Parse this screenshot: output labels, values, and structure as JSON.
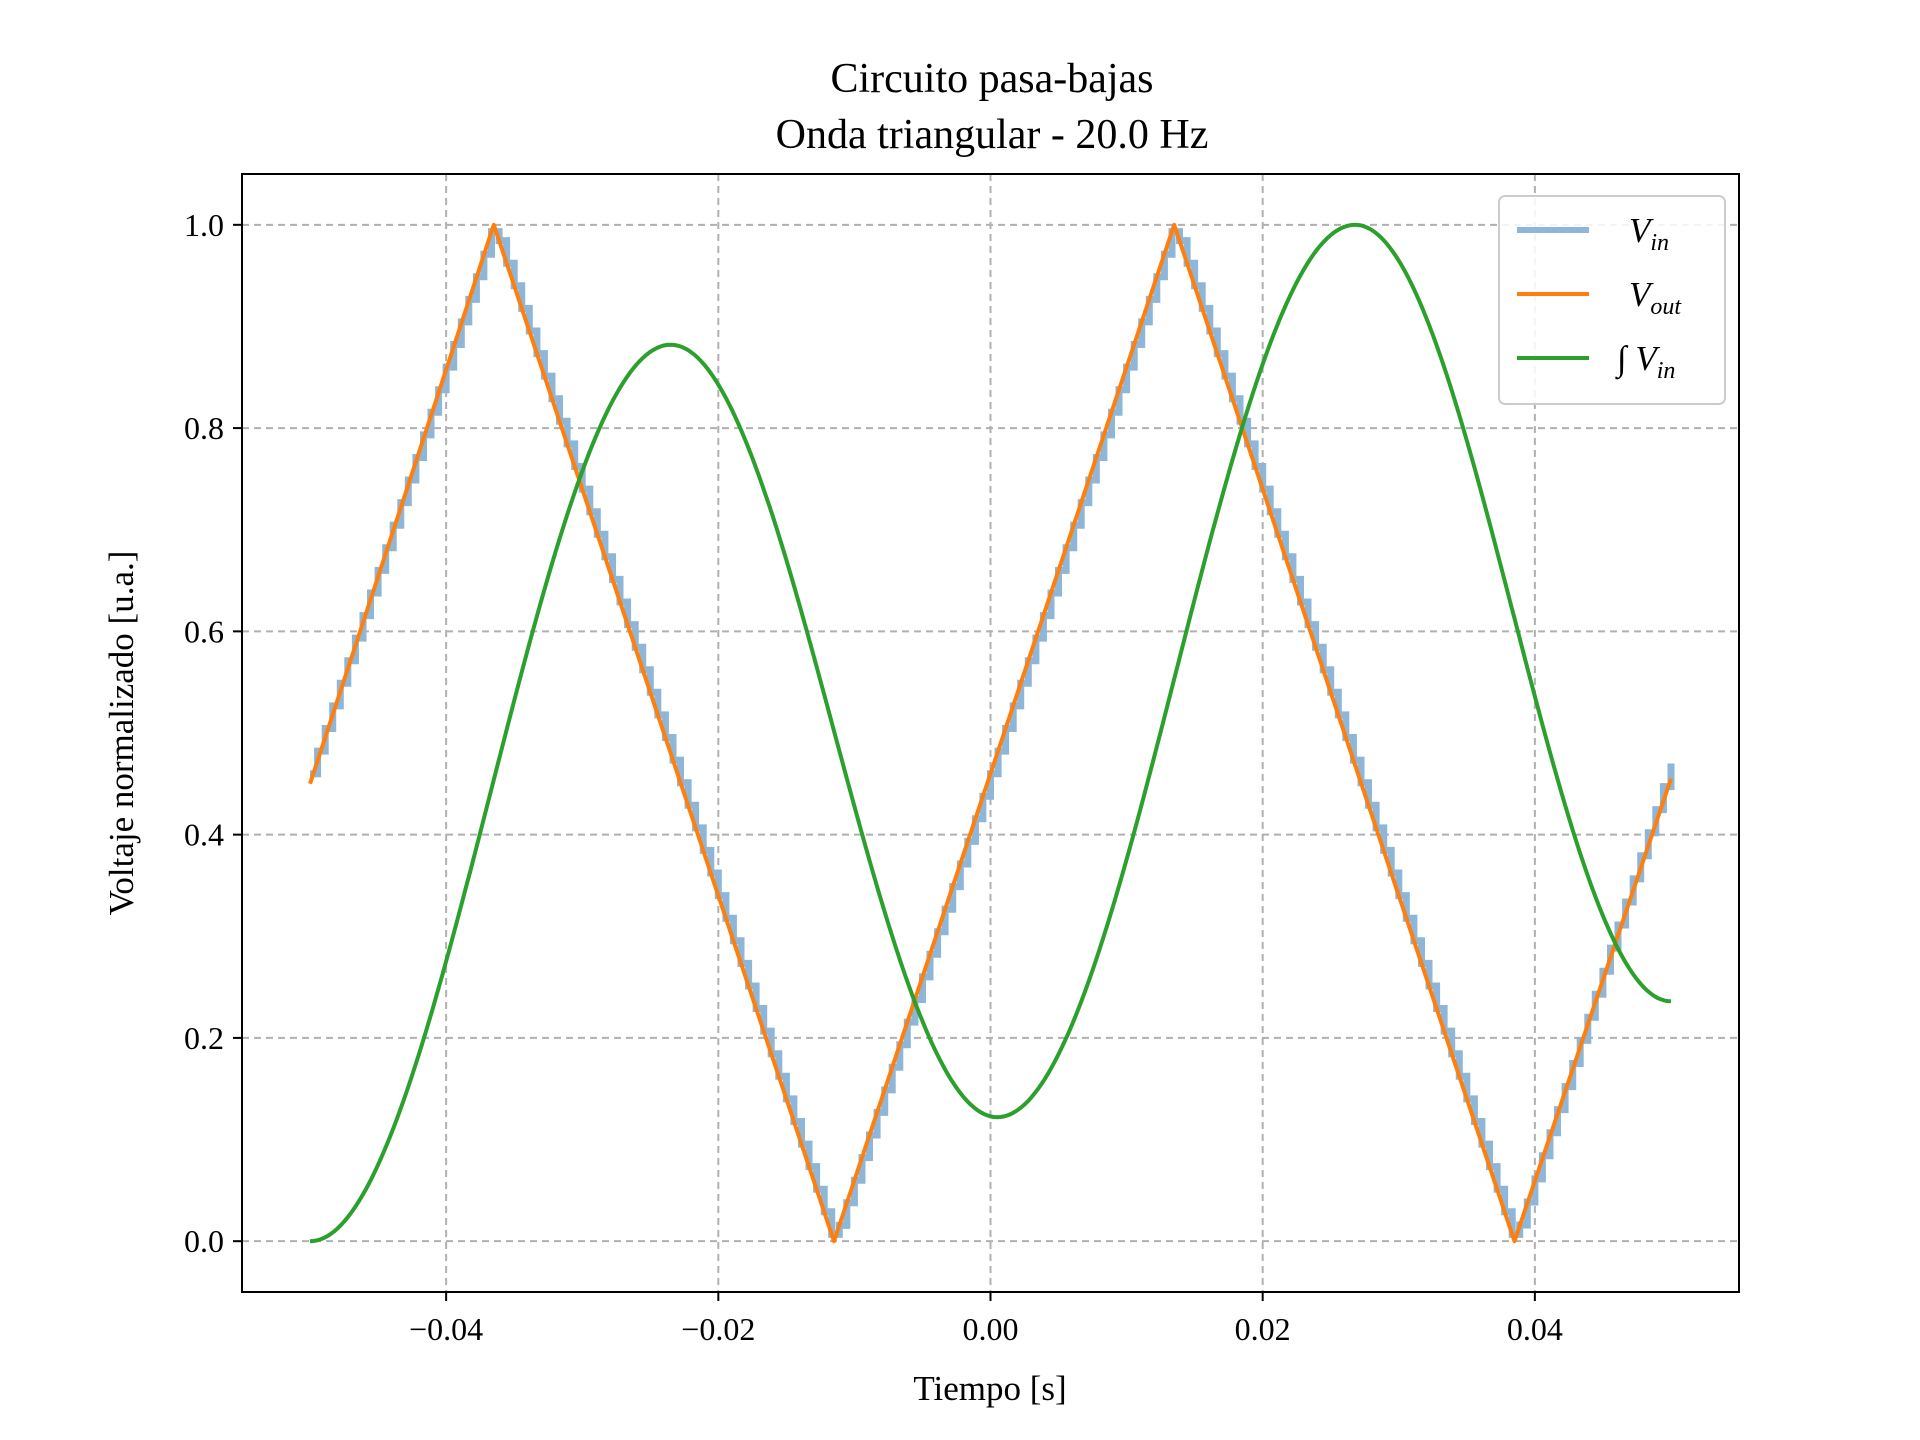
{
  "chart_data": {
    "type": "line",
    "title": "Circuito pasa-bajas",
    "subtitle": "Onda triangular - 20.0 Hz",
    "xlabel": "Tiempo [s]",
    "ylabel": "Voltaje normalizado [u.a.]",
    "xlim": [
      -0.055,
      0.055
    ],
    "ylim": [
      -0.05,
      1.05
    ],
    "xticks": [
      -0.04,
      -0.02,
      0.0,
      0.02,
      0.04
    ],
    "xtick_labels": [
      "−0.04",
      "−0.02",
      "0.00",
      "0.02",
      "0.04"
    ],
    "yticks": [
      0.0,
      0.2,
      0.4,
      0.6,
      0.8,
      1.0
    ],
    "ytick_labels": [
      "0.0",
      "0.2",
      "0.4",
      "0.6",
      "0.8",
      "1.0"
    ],
    "grid": true,
    "legend_position": "top-right",
    "series": [
      {
        "name": "V_in",
        "legend_main": "V",
        "legend_sub": "in",
        "color": "#8db6d8",
        "style": "staircase",
        "x": [
          -0.05,
          -0.0365,
          -0.0115,
          0.0135,
          0.0385,
          0.05
        ],
        "y": [
          0.46,
          1.0,
          0.0,
          1.0,
          0.0,
          0.47
        ]
      },
      {
        "name": "V_out",
        "legend_main": "V",
        "legend_sub": "out",
        "color": "#ff7f0e",
        "style": "line",
        "x": [
          -0.05,
          -0.0365,
          -0.0115,
          0.0135,
          0.0385,
          0.05
        ],
        "y": [
          0.45,
          1.0,
          0.0,
          1.0,
          0.0,
          0.455
        ]
      },
      {
        "name": "∫ V_in",
        "legend_prefix": "∫",
        "legend_main": "V",
        "legend_sub": "in",
        "color": "#2ca02c",
        "style": "smooth",
        "x": [
          -0.05,
          -0.0235,
          0.0005,
          0.0268,
          0.05
        ],
        "y": [
          0.0,
          0.882,
          0.122,
          1.0,
          0.236
        ]
      }
    ]
  }
}
